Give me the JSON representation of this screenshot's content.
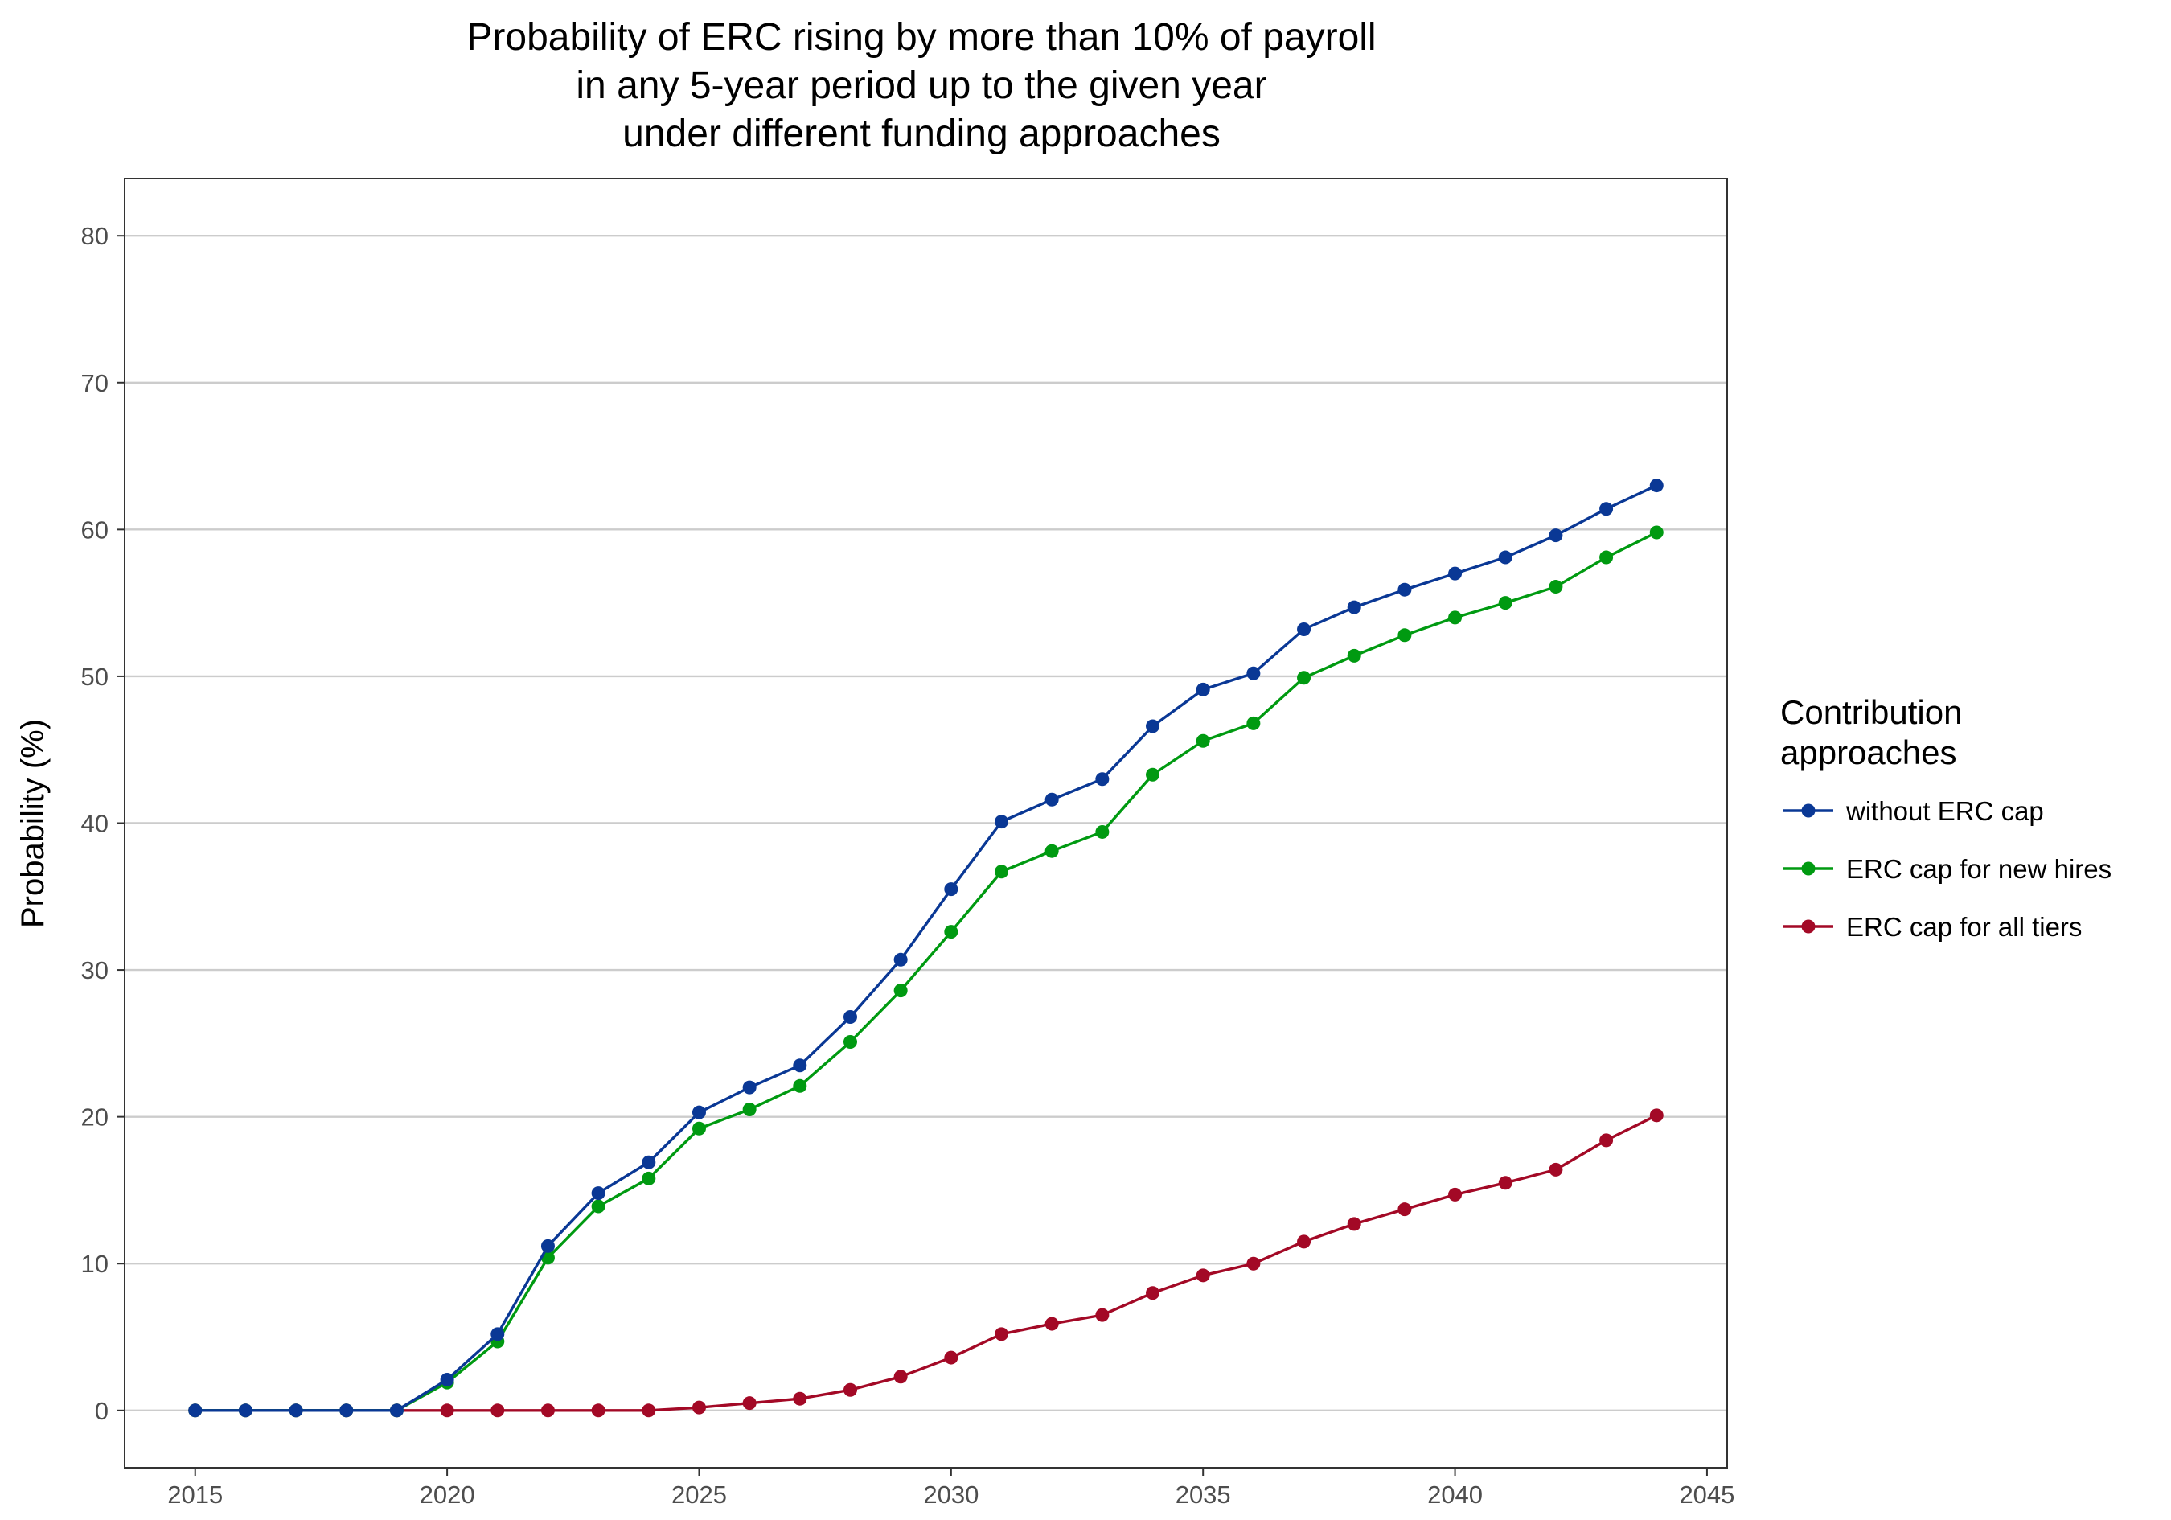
{
  "chart_data": {
    "type": "line",
    "title": [
      "Probability of ERC rising by more than 10% of payroll",
      "in any 5-year period up to the given year",
      "under different funding approaches"
    ],
    "xlabel": "",
    "ylabel": "Probability (%)",
    "xlim": [
      2013.6,
      2045.4
    ],
    "ylim": [
      -3.9,
      83.9
    ],
    "x_ticks": [
      2015,
      2020,
      2025,
      2030,
      2035,
      2040,
      2045
    ],
    "y_ticks": [
      0,
      10,
      20,
      30,
      40,
      50,
      60,
      70,
      80
    ],
    "grid": "horizontal major",
    "legend": {
      "title": [
        "Contribution",
        "approaches"
      ],
      "placement": "right"
    },
    "x": [
      2015,
      2016,
      2017,
      2018,
      2019,
      2020,
      2021,
      2022,
      2023,
      2024,
      2025,
      2026,
      2027,
      2028,
      2029,
      2030,
      2031,
      2032,
      2033,
      2034,
      2035,
      2036,
      2037,
      2038,
      2039,
      2040,
      2041,
      2042,
      2043,
      2044
    ],
    "series": [
      {
        "name": "without ERC cap",
        "color": "#0a3895",
        "values": [
          0,
          0,
          0,
          0,
          0,
          2.1,
          5.2,
          11.2,
          14.8,
          16.9,
          20.3,
          22.0,
          23.5,
          26.8,
          30.7,
          35.5,
          40.1,
          41.6,
          43.0,
          46.6,
          49.1,
          50.2,
          53.2,
          54.7,
          55.9,
          57.0,
          58.1,
          59.6,
          61.4,
          63.0
        ]
      },
      {
        "name": "ERC cap for new hires",
        "color": "#009a11",
        "values": [
          0,
          0,
          0,
          0,
          0,
          1.9,
          4.7,
          10.4,
          13.9,
          15.8,
          19.2,
          20.5,
          22.1,
          25.1,
          28.6,
          32.6,
          36.7,
          38.1,
          39.4,
          43.3,
          45.6,
          46.8,
          49.9,
          51.4,
          52.8,
          54.0,
          55.0,
          56.1,
          58.1,
          59.8
        ]
      },
      {
        "name": "ERC cap for all tiers",
        "color": "#a30926",
        "values": [
          0,
          0,
          0,
          0,
          0,
          0,
          0,
          0,
          0,
          0,
          0.2,
          0.5,
          0.8,
          1.4,
          2.3,
          3.6,
          5.2,
          5.9,
          6.5,
          8.0,
          9.2,
          10.0,
          11.5,
          12.7,
          13.7,
          14.7,
          15.5,
          16.4,
          18.4,
          20.1
        ]
      }
    ]
  }
}
